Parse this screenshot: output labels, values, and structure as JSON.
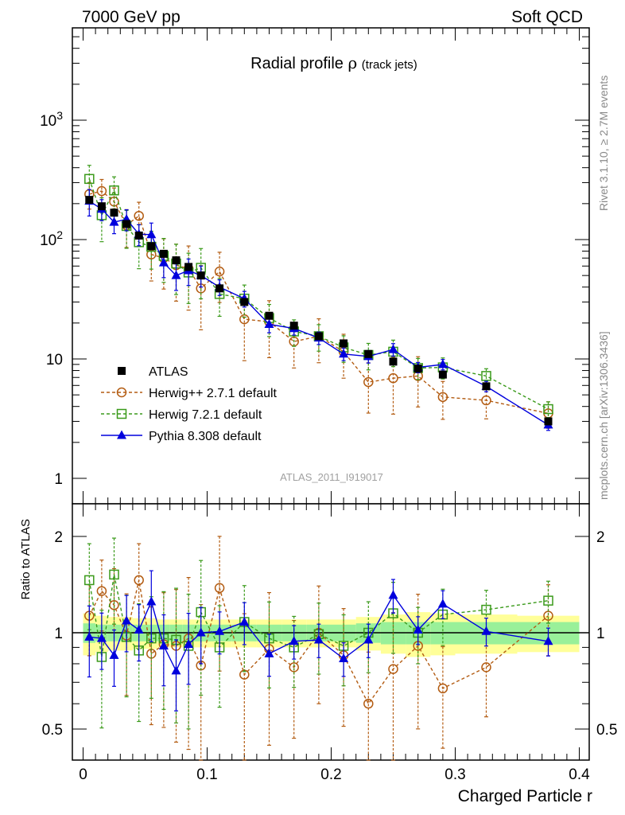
{
  "header": {
    "left": "7000 GeV pp",
    "right": "Soft QCD"
  },
  "title": {
    "main": "Radial profile ",
    "symbol": "ρ",
    "sub": "(track jets)"
  },
  "side_labels": {
    "rivet": "Rivet 3.1.10, ≥ 2.7M events",
    "mcplots": "mcplots.cern.ch [arXiv:1306.3436]"
  },
  "analysis_tag": "ATLAS_2011_I919017",
  "chart_data": [
    {
      "type": "scatter",
      "panel": "main",
      "yscale": "log",
      "ylim": [
        0.55,
        8000
      ],
      "xlim": [
        -0.01,
        0.4
      ],
      "grid": false,
      "legend_position": "lower-left",
      "y_tick_labels": [
        "1",
        "10",
        "10^2",
        "10^3"
      ],
      "x": [
        0.005,
        0.015,
        0.025,
        0.035,
        0.045,
        0.055,
        0.065,
        0.075,
        0.085,
        0.095,
        0.11,
        0.13,
        0.15,
        0.17,
        0.19,
        0.21,
        0.23,
        0.25,
        0.27,
        0.29,
        0.325,
        0.375
      ],
      "series": [
        {
          "name": "ATLAS",
          "color": "#000000",
          "marker": "filled-square",
          "values": [
            215,
            190,
            168,
            135,
            108,
            88,
            76,
            67,
            59,
            50,
            39,
            30,
            23,
            19,
            15.5,
            13.5,
            11,
            9.5,
            8.3,
            7.4,
            5.9,
            3.0
          ]
        },
        {
          "name": "Herwig++ 2.7.1 default",
          "color": "#b35c12",
          "marker": "open-circle",
          "line": "dashed",
          "values": [
            240,
            255,
            208,
            132,
            158,
            75,
            70,
            61,
            57,
            39,
            54,
            21.5,
            20.5,
            14,
            15.5,
            11.5,
            6.4,
            6.9,
            7.2,
            4.8,
            4.5,
            3.5
          ],
          "err_rel": [
            0.25,
            0.25,
            0.3,
            0.35,
            0.3,
            0.4,
            0.45,
            0.5,
            0.55,
            0.55,
            0.45,
            0.55,
            0.5,
            0.4,
            0.4,
            0.4,
            0.45,
            0.5,
            0.45,
            0.35,
            0.3,
            0.25
          ]
        },
        {
          "name": "Herwig 7.2.1 default",
          "color": "#3a9a1a",
          "marker": "open-square",
          "line": "dashed",
          "values": [
            322,
            160,
            258,
            130,
            95,
            87,
            73,
            63,
            53,
            58,
            35,
            32,
            22,
            17,
            15.5,
            12.5,
            10.8,
            11.5,
            8.4,
            8.5,
            7.2,
            3.8
          ],
          "err_rel": [
            0.3,
            0.4,
            0.3,
            0.35,
            0.4,
            0.35,
            0.4,
            0.45,
            0.45,
            0.45,
            0.35,
            0.3,
            0.3,
            0.25,
            0.25,
            0.25,
            0.25,
            0.25,
            0.2,
            0.2,
            0.15,
            0.15
          ]
        },
        {
          "name": "Pythia 8.308 default",
          "color": "#0000dd",
          "marker": "filled-triangle",
          "line": "solid",
          "values": [
            210,
            180,
            140,
            148,
            111,
            110,
            64,
            50,
            55,
            50,
            40,
            32,
            19.5,
            18,
            15,
            11,
            10.5,
            12,
            8.5,
            9.0,
            5.9,
            2.8
          ],
          "err_rel": [
            0.25,
            0.2,
            0.2,
            0.2,
            0.2,
            0.25,
            0.25,
            0.25,
            0.25,
            0.2,
            0.15,
            0.15,
            0.15,
            0.12,
            0.12,
            0.12,
            0.12,
            0.12,
            0.1,
            0.1,
            0.1,
            0.1
          ]
        }
      ]
    },
    {
      "type": "scatter",
      "panel": "ratio",
      "yscale": "log",
      "ylabel": "Ratio to ATLAS",
      "xlabel": "Charged Particle r",
      "xlim": [
        -0.01,
        0.4
      ],
      "ylim": [
        0.4,
        2.5
      ],
      "y_tick_labels": [
        "0.5",
        "1",
        "2"
      ],
      "x_tick_labels": [
        "0",
        "0.1",
        "0.2",
        "0.3",
        "0.4"
      ],
      "band_color_inner": "#99f099",
      "band_color_outer": "#ffff99",
      "band_edges": [
        0.0,
        0.01,
        0.02,
        0.03,
        0.04,
        0.05,
        0.06,
        0.07,
        0.08,
        0.09,
        0.1,
        0.12,
        0.14,
        0.16,
        0.18,
        0.2,
        0.22,
        0.24,
        0.26,
        0.28,
        0.3,
        0.35,
        0.4
      ],
      "band_inner": [
        0.07,
        0.06,
        0.06,
        0.06,
        0.06,
        0.06,
        0.06,
        0.06,
        0.06,
        0.06,
        0.06,
        0.06,
        0.06,
        0.06,
        0.06,
        0.06,
        0.07,
        0.08,
        0.08,
        0.08,
        0.08,
        0.08
      ],
      "band_outer": [
        0.15,
        0.13,
        0.12,
        0.12,
        0.11,
        0.11,
        0.1,
        0.1,
        0.1,
        0.1,
        0.1,
        0.1,
        0.1,
        0.1,
        0.1,
        0.1,
        0.12,
        0.14,
        0.16,
        0.15,
        0.14,
        0.13
      ],
      "x": [
        0.005,
        0.015,
        0.025,
        0.035,
        0.045,
        0.055,
        0.065,
        0.075,
        0.085,
        0.095,
        0.11,
        0.13,
        0.15,
        0.17,
        0.19,
        0.21,
        0.23,
        0.25,
        0.27,
        0.29,
        0.325,
        0.375
      ],
      "series": [
        {
          "name": "Herwig++ 2.7.1 default",
          "color": "#b35c12",
          "marker": "open-circle",
          "values": [
            1.13,
            1.35,
            1.22,
            0.98,
            1.46,
            0.86,
            0.92,
            0.91,
            0.96,
            0.79,
            1.38,
            0.74,
            0.89,
            0.78,
            1.0,
            0.85,
            0.6,
            0.77,
            0.91,
            0.67,
            0.78,
            1.13
          ],
          "err_rel": [
            0.25,
            0.25,
            0.3,
            0.35,
            0.3,
            0.4,
            0.45,
            0.5,
            0.55,
            0.55,
            0.45,
            0.55,
            0.5,
            0.4,
            0.4,
            0.4,
            0.45,
            0.5,
            0.45,
            0.35,
            0.3,
            0.25
          ]
        },
        {
          "name": "Herwig 7.2.1 default",
          "color": "#3a9a1a",
          "marker": "open-square",
          "values": [
            1.46,
            0.84,
            1.52,
            0.97,
            0.88,
            0.96,
            0.96,
            0.95,
            0.91,
            1.16,
            0.9,
            1.08,
            0.96,
            0.9,
            0.99,
            0.91,
            1.0,
            1.15,
            1.0,
            1.14,
            1.18,
            1.26
          ],
          "err_rel": [
            0.3,
            0.4,
            0.3,
            0.35,
            0.4,
            0.35,
            0.4,
            0.45,
            0.45,
            0.45,
            0.35,
            0.3,
            0.3,
            0.25,
            0.25,
            0.25,
            0.25,
            0.25,
            0.2,
            0.2,
            0.15,
            0.15
          ]
        },
        {
          "name": "Pythia 8.308 default",
          "color": "#0000dd",
          "marker": "filled-triangle",
          "values": [
            0.97,
            0.96,
            0.85,
            1.09,
            1.02,
            1.25,
            0.91,
            0.76,
            0.92,
            1.0,
            1.01,
            1.08,
            0.86,
            0.94,
            0.95,
            0.83,
            0.95,
            1.31,
            1.02,
            1.23,
            1.01,
            0.94
          ],
          "err_rel": [
            0.25,
            0.2,
            0.2,
            0.2,
            0.2,
            0.25,
            0.25,
            0.25,
            0.25,
            0.2,
            0.15,
            0.15,
            0.15,
            0.12,
            0.12,
            0.12,
            0.12,
            0.12,
            0.1,
            0.1,
            0.1,
            0.1
          ]
        }
      ]
    }
  ]
}
